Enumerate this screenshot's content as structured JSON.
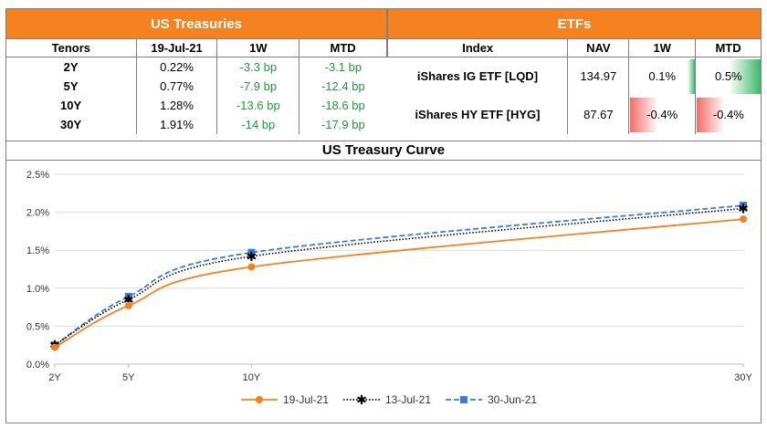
{
  "treasuries": {
    "title": "US Treasuries",
    "headers": [
      "Tenors",
      "19-Jul-21",
      "1W",
      "MTD"
    ],
    "rows": [
      {
        "tenor": "2Y",
        "yield": "0.22%",
        "w1": "-3.3 bp",
        "mtd": "-3.1 bp"
      },
      {
        "tenor": "5Y",
        "yield": "0.77%",
        "w1": "-7.9 bp",
        "mtd": "-12.4 bp"
      },
      {
        "tenor": "10Y",
        "yield": "1.28%",
        "w1": "-13.6 bp",
        "mtd": "-18.6 bp"
      },
      {
        "tenor": "30Y",
        "yield": "1.91%",
        "w1": "-14 bp",
        "mtd": "-17.9 bp"
      }
    ]
  },
  "etfs": {
    "title": "ETFs",
    "headers": [
      "Index",
      "NAV",
      "1W",
      "MTD"
    ],
    "rows": [
      {
        "index": "iShares IG ETF [LQD]",
        "nav": "134.97",
        "w1": "0.1%",
        "mtd": "0.5%",
        "w1_value": 0.1,
        "mtd_value": 0.5
      },
      {
        "index": "iShares HY ETF [HYG]",
        "nav": "87.67",
        "w1": "-0.4%",
        "mtd": "-0.4%",
        "w1_value": -0.4,
        "mtd_value": -0.4
      }
    ],
    "colors": {
      "positive": "#3cb86a",
      "negative": "#f26b6b"
    }
  },
  "chart_data": {
    "type": "line",
    "title": "US Treasury Curve",
    "x": [
      "2Y",
      "5Y",
      "10Y",
      "30Y"
    ],
    "x_numeric": [
      2,
      5,
      10,
      30
    ],
    "ylim": [
      0,
      2.5
    ],
    "yticks": [
      "0.0%",
      "0.5%",
      "1.0%",
      "1.5%",
      "2.0%",
      "2.5%"
    ],
    "grid": "horizontal",
    "legend_position": "bottom",
    "series": [
      {
        "name": "19-Jul-21",
        "values": [
          0.22,
          0.77,
          1.28,
          1.91
        ],
        "color": "#f58220",
        "style": "solid",
        "marker": "circle"
      },
      {
        "name": "13-Jul-21",
        "values": [
          0.25,
          0.85,
          1.42,
          2.05
        ],
        "color": "#000000",
        "style": "dotted",
        "marker": "star"
      },
      {
        "name": "30-Jun-21",
        "values": [
          0.25,
          0.89,
          1.47,
          2.09
        ],
        "color": "#3a7dd8",
        "style": "dashed",
        "marker": "square"
      }
    ]
  }
}
